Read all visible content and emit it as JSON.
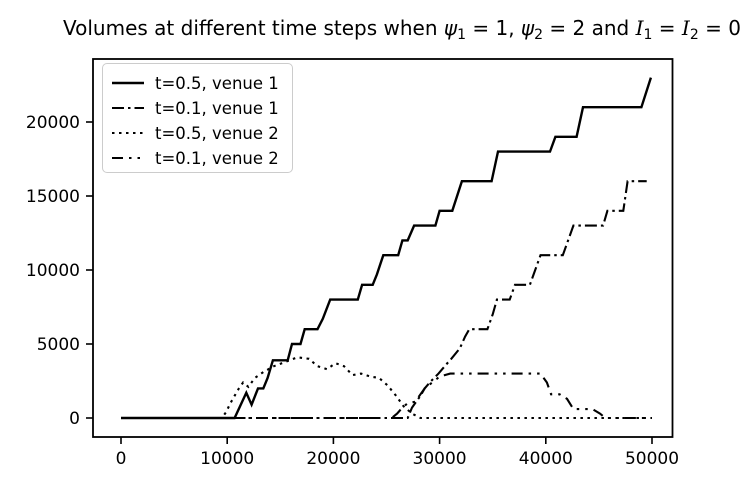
{
  "title_parts": {
    "t0": "Volumes at different time steps when ",
    "v0": "ψ",
    "b0": "1",
    "t1": " = 1, ",
    "v1": "ψ",
    "b1": "2",
    "t2": " = 2 and ",
    "v2": "I",
    "b2": "1",
    "t3": " = ",
    "v3": "I",
    "b3": "2",
    "t4": " = 0"
  },
  "chart_data": {
    "type": "line",
    "title": "Volumes at different time steps when ψ1 = 1, ψ2 = 2 and I1 = I2 = 0",
    "xlabel": "",
    "ylabel": "",
    "xlim": [
      -2600,
      52000
    ],
    "ylim": [
      -1300,
      24300
    ],
    "x_ticks": [
      0,
      10000,
      20000,
      30000,
      40000,
      50000
    ],
    "y_ticks": [
      0,
      5000,
      10000,
      15000,
      20000
    ],
    "x_tick_labels": [
      "0",
      "10000",
      "20000",
      "30000",
      "40000",
      "50000"
    ],
    "y_tick_labels": [
      "0",
      "5000",
      "10000",
      "15000",
      "20000"
    ],
    "grid": false,
    "legend_position": "upper left",
    "line_color": "#000000",
    "series": [
      {
        "name": "t=0.5, venue 1",
        "style": "solid",
        "points": [
          [
            0,
            0
          ],
          [
            10700,
            0
          ],
          [
            11800,
            1700
          ],
          [
            12300,
            900
          ],
          [
            12900,
            2000
          ],
          [
            13400,
            2000
          ],
          [
            13800,
            2700
          ],
          [
            14300,
            3900
          ],
          [
            15700,
            3900
          ],
          [
            16100,
            5000
          ],
          [
            16900,
            5000
          ],
          [
            17300,
            6000
          ],
          [
            18500,
            6000
          ],
          [
            19000,
            6700
          ],
          [
            19700,
            8000
          ],
          [
            22300,
            8000
          ],
          [
            22700,
            9000
          ],
          [
            23700,
            9000
          ],
          [
            24100,
            9700
          ],
          [
            24700,
            11000
          ],
          [
            26100,
            11000
          ],
          [
            26500,
            12000
          ],
          [
            27000,
            12000
          ],
          [
            27600,
            13000
          ],
          [
            29600,
            13000
          ],
          [
            30000,
            14000
          ],
          [
            31200,
            14000
          ],
          [
            32100,
            16000
          ],
          [
            34900,
            16000
          ],
          [
            35500,
            18000
          ],
          [
            40400,
            18000
          ],
          [
            40900,
            19000
          ],
          [
            42900,
            19000
          ],
          [
            43500,
            21000
          ],
          [
            49000,
            21000
          ],
          [
            49900,
            23000
          ]
        ]
      },
      {
        "name": "t=0.1, venue 1",
        "style": "dashdot",
        "points": [
          [
            0,
            0
          ],
          [
            27000,
            0
          ],
          [
            27400,
            700
          ],
          [
            27800,
            1100
          ],
          [
            28200,
            1500
          ],
          [
            28600,
            2000
          ],
          [
            29200,
            2500
          ],
          [
            29900,
            3000
          ],
          [
            30600,
            3600
          ],
          [
            31100,
            4000
          ],
          [
            31900,
            4700
          ],
          [
            32400,
            5500
          ],
          [
            32800,
            6000
          ],
          [
            34500,
            6000
          ],
          [
            35000,
            7000
          ],
          [
            35400,
            8000
          ],
          [
            36600,
            8000
          ],
          [
            37100,
            9000
          ],
          [
            38500,
            9000
          ],
          [
            39000,
            10000
          ],
          [
            39500,
            11000
          ],
          [
            41600,
            11000
          ],
          [
            42100,
            12000
          ],
          [
            42600,
            13000
          ],
          [
            45400,
            13000
          ],
          [
            45800,
            14000
          ],
          [
            47300,
            14000
          ],
          [
            47700,
            16000
          ],
          [
            49500,
            16000
          ]
        ]
      },
      {
        "name": "t=0.5, venue 2",
        "style": "dotted",
        "points": [
          [
            0,
            0
          ],
          [
            9500,
            0
          ],
          [
            9900,
            400
          ],
          [
            10300,
            1000
          ],
          [
            10700,
            1500
          ],
          [
            11100,
            2000
          ],
          [
            11500,
            2400
          ],
          [
            12000,
            2100
          ],
          [
            12600,
            2700
          ],
          [
            13400,
            3100
          ],
          [
            14400,
            3500
          ],
          [
            15500,
            3800
          ],
          [
            16600,
            4100
          ],
          [
            17700,
            4000
          ],
          [
            18500,
            3500
          ],
          [
            19400,
            3300
          ],
          [
            20200,
            3700
          ],
          [
            21000,
            3500
          ],
          [
            21800,
            2900
          ],
          [
            22600,
            3000
          ],
          [
            23500,
            2800
          ],
          [
            24300,
            2700
          ],
          [
            25100,
            2200
          ],
          [
            25900,
            1500
          ],
          [
            26600,
            800
          ],
          [
            27400,
            300
          ],
          [
            28200,
            0
          ],
          [
            50000,
            0
          ]
        ]
      },
      {
        "name": "t=0.1, venue 2",
        "style": "dashdotdot",
        "points": [
          [
            0,
            0
          ],
          [
            25500,
            0
          ],
          [
            26000,
            300
          ],
          [
            26500,
            700
          ],
          [
            27000,
            1000
          ],
          [
            27700,
            1100
          ],
          [
            28100,
            1500
          ],
          [
            28600,
            2000
          ],
          [
            29300,
            2400
          ],
          [
            30000,
            2800
          ],
          [
            31000,
            3000
          ],
          [
            39500,
            3000
          ],
          [
            40100,
            2400
          ],
          [
            40500,
            1600
          ],
          [
            41300,
            1600
          ],
          [
            42000,
            1300
          ],
          [
            42600,
            600
          ],
          [
            44400,
            600
          ],
          [
            45100,
            300
          ],
          [
            45600,
            0
          ],
          [
            49800,
            0
          ]
        ]
      }
    ]
  }
}
